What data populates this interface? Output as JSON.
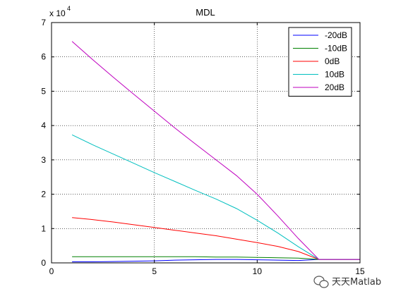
{
  "chart_data": {
    "type": "line",
    "title": "MDL",
    "xlabel": "",
    "ylabel": "",
    "xlim": [
      0,
      15
    ],
    "ylim": [
      0,
      7
    ],
    "x_ticks": [
      0,
      5,
      10,
      15
    ],
    "y_ticks": [
      0,
      1,
      2,
      3,
      4,
      5,
      6,
      7
    ],
    "y_exponent": {
      "base": "x 10",
      "power": "4"
    },
    "grid": "dotted",
    "legend_position": "top-right",
    "x": [
      1,
      2,
      3,
      4,
      5,
      6,
      7,
      8,
      9,
      10,
      11,
      12,
      13,
      14,
      15
    ],
    "series": [
      {
        "name": "-20dB",
        "color": "#0000ff",
        "values": [
          0.03,
          0.03,
          0.04,
          0.05,
          0.06,
          0.08,
          0.09,
          0.1,
          0.1,
          0.09,
          0.08,
          0.07,
          0.1,
          0.1,
          0.1
        ]
      },
      {
        "name": "-10dB",
        "color": "#008000",
        "values": [
          0.18,
          0.18,
          0.18,
          0.18,
          0.18,
          0.18,
          0.18,
          0.17,
          0.17,
          0.16,
          0.15,
          0.14,
          0.1,
          0.1,
          0.1
        ]
      },
      {
        "name": "0dB",
        "color": "#ff0000",
        "values": [
          1.32,
          1.26,
          1.19,
          1.11,
          1.03,
          0.95,
          0.87,
          0.79,
          0.69,
          0.59,
          0.48,
          0.33,
          0.1,
          0.1,
          0.1
        ]
      },
      {
        "name": "10dB",
        "color": "#00bfbf",
        "values": [
          3.73,
          3.44,
          3.17,
          2.9,
          2.63,
          2.37,
          2.11,
          1.86,
          1.58,
          1.24,
          0.87,
          0.47,
          0.1,
          0.1,
          0.1
        ]
      },
      {
        "name": "20dB",
        "color": "#bf00bf",
        "values": [
          6.45,
          5.92,
          5.41,
          4.91,
          4.42,
          3.93,
          3.46,
          3.0,
          2.54,
          2.0,
          1.37,
          0.71,
          0.1,
          0.1,
          0.1
        ]
      }
    ]
  },
  "watermark": {
    "text": "天天Matlab",
    "icon": "wechat-logo-icon"
  }
}
